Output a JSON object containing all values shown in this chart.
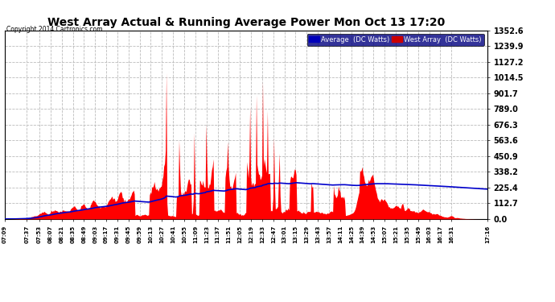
{
  "title": "West Array Actual & Running Average Power Mon Oct 13 17:20",
  "copyright": "Copyright 2014 Cartronics.com",
  "legend_avg": "Average  (DC Watts)",
  "legend_west": "West Array  (DC Watts)",
  "ymax": 1352.6,
  "yticks": [
    0.0,
    112.7,
    225.4,
    338.2,
    450.9,
    563.6,
    676.3,
    789.0,
    901.7,
    1014.5,
    1127.2,
    1239.9,
    1352.6
  ],
  "bg_color": "#ffffff",
  "fill_color": "#ff0000",
  "avg_color": "#0000cc",
  "grid_color": "#bbbbbb",
  "start_time": "07:09",
  "end_time": "17:16",
  "xtick_labels": [
    "07:09",
    "07:37",
    "07:53",
    "08:07",
    "08:21",
    "08:35",
    "08:49",
    "09:03",
    "09:17",
    "09:31",
    "09:45",
    "09:59",
    "10:13",
    "10:27",
    "10:41",
    "10:55",
    "11:09",
    "11:23",
    "11:37",
    "11:51",
    "12:05",
    "12:19",
    "12:33",
    "12:47",
    "13:01",
    "13:15",
    "13:29",
    "13:43",
    "13:57",
    "14:11",
    "14:25",
    "14:39",
    "14:53",
    "15:07",
    "15:21",
    "15:35",
    "15:49",
    "16:03",
    "16:17",
    "16:31",
    "17:16"
  ]
}
